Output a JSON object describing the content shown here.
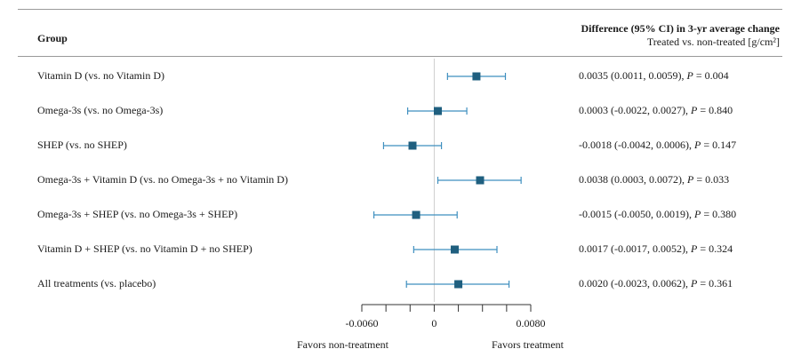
{
  "header": {
    "group_label": "Group",
    "diff_title": "Difference (95% CI) in 3-yr average change",
    "diff_subtitle": "Treated vs. non-treated [g/cm²]"
  },
  "rows": [
    {
      "label": "Vitamin D (vs. no Vitamin D)",
      "est_text": "0.0035 (0.0011, 0.0059), ",
      "p_label": "P",
      "p_text": " = 0.004"
    },
    {
      "label": "Omega-3s (vs. no Omega-3s)",
      "est_text": "0.0003 (-0.0022, 0.0027), ",
      "p_label": "P",
      "p_text": " = 0.840"
    },
    {
      "label": "SHEP (vs. no SHEP)",
      "est_text": "-0.0018 (-0.0042, 0.0006), ",
      "p_label": "P",
      "p_text": " = 0.147"
    },
    {
      "label": "Omega-3s + Vitamin D (vs. no Omega-3s + no Vitamin D)",
      "est_text": "0.0038 (0.0003, 0.0072), ",
      "p_label": "P",
      "p_text": " = 0.033"
    },
    {
      "label": "Omega-3s + SHEP (vs. no Omega-3s + SHEP)",
      "est_text": "-0.0015 (-0.0050, 0.0019), ",
      "p_label": "P",
      "p_text": " = 0.380"
    },
    {
      "label": "Vitamin D + SHEP (vs. no Vitamin D + no SHEP)",
      "est_text": "0.0017 (-0.0017, 0.0052), ",
      "p_label": "P",
      "p_text": " = 0.324"
    },
    {
      "label": "All treatments (vs. placebo)",
      "est_text": "0.0020 (-0.0023, 0.0062), ",
      "p_label": "P",
      "p_text": " = 0.361"
    }
  ],
  "axis": {
    "tick_labels": [
      "-0.0060",
      "0",
      "0.0080"
    ],
    "favors_left": "Favors non-treatment",
    "favors_right": "Favors treatment"
  },
  "chart_data": {
    "type": "forest",
    "title": "",
    "xlabel": "",
    "categories": [
      "Vitamin D (vs. no Vitamin D)",
      "Omega-3s (vs. no Omega-3s)",
      "SHEP (vs. no SHEP)",
      "Omega-3s + Vitamin D (vs. no Omega-3s + no Vitamin D)",
      "Omega-3s + SHEP (vs. no Omega-3s + SHEP)",
      "Vitamin D + SHEP (vs. no Vitamin D + no SHEP)",
      "All treatments (vs. placebo)"
    ],
    "estimates": [
      0.0035,
      0.0003,
      -0.0018,
      0.0038,
      -0.0015,
      0.0017,
      0.002
    ],
    "ci_lower": [
      0.0011,
      -0.0022,
      -0.0042,
      0.0003,
      -0.005,
      -0.0017,
      -0.0023
    ],
    "ci_upper": [
      0.0059,
      0.0027,
      0.0006,
      0.0072,
      0.0019,
      0.0052,
      0.0062
    ],
    "p_values": [
      0.004,
      0.84,
      0.147,
      0.033,
      0.38,
      0.324,
      0.361
    ],
    "xlim": [
      -0.006,
      0.008
    ],
    "xticks": [
      -0.006,
      -0.004,
      -0.002,
      0,
      0.002,
      0.004,
      0.006,
      0.008
    ],
    "xtick_labels": [
      "-0.0060",
      "0",
      "0.0080"
    ],
    "reference_line": 0,
    "colors": {
      "marker": "#1f5f7f",
      "ci": "#3f8fbf",
      "reference": "#cfcfcf"
    }
  }
}
